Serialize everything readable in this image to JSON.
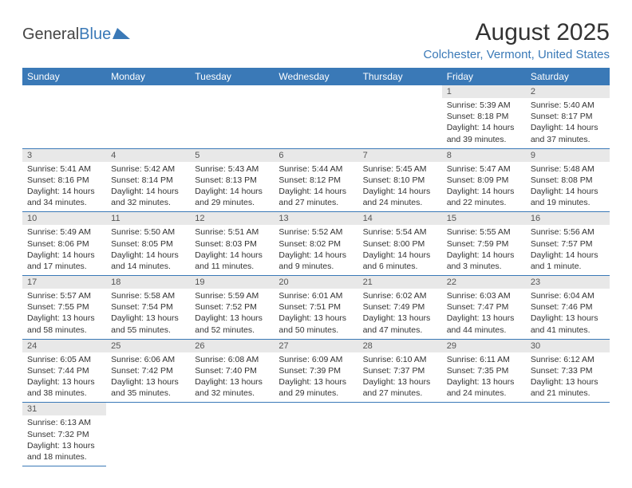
{
  "logo": {
    "part1": "General",
    "part2": "Blue"
  },
  "title": "August 2025",
  "location": "Colchester, Vermont, United States",
  "colors": {
    "brand": "#3a79b7",
    "daynum_bg": "#e8e8e8",
    "text": "#333333",
    "bg": "#ffffff"
  },
  "typography": {
    "title_fontsize": 30,
    "location_fontsize": 15,
    "header_fontsize": 12,
    "body_fontsize": 10.5
  },
  "weekdays": [
    "Sunday",
    "Monday",
    "Tuesday",
    "Wednesday",
    "Thursday",
    "Friday",
    "Saturday"
  ],
  "weeks": [
    [
      null,
      null,
      null,
      null,
      null,
      {
        "day": "1",
        "sunrise": "5:39 AM",
        "sunset": "8:18 PM",
        "dl_h": "14",
        "dl_m": "39"
      },
      {
        "day": "2",
        "sunrise": "5:40 AM",
        "sunset": "8:17 PM",
        "dl_h": "14",
        "dl_m": "37"
      }
    ],
    [
      {
        "day": "3",
        "sunrise": "5:41 AM",
        "sunset": "8:16 PM",
        "dl_h": "14",
        "dl_m": "34"
      },
      {
        "day": "4",
        "sunrise": "5:42 AM",
        "sunset": "8:14 PM",
        "dl_h": "14",
        "dl_m": "32"
      },
      {
        "day": "5",
        "sunrise": "5:43 AM",
        "sunset": "8:13 PM",
        "dl_h": "14",
        "dl_m": "29"
      },
      {
        "day": "6",
        "sunrise": "5:44 AM",
        "sunset": "8:12 PM",
        "dl_h": "14",
        "dl_m": "27"
      },
      {
        "day": "7",
        "sunrise": "5:45 AM",
        "sunset": "8:10 PM",
        "dl_h": "14",
        "dl_m": "24"
      },
      {
        "day": "8",
        "sunrise": "5:47 AM",
        "sunset": "8:09 PM",
        "dl_h": "14",
        "dl_m": "22"
      },
      {
        "day": "9",
        "sunrise": "5:48 AM",
        "sunset": "8:08 PM",
        "dl_h": "14",
        "dl_m": "19"
      }
    ],
    [
      {
        "day": "10",
        "sunrise": "5:49 AM",
        "sunset": "8:06 PM",
        "dl_h": "14",
        "dl_m": "17"
      },
      {
        "day": "11",
        "sunrise": "5:50 AM",
        "sunset": "8:05 PM",
        "dl_h": "14",
        "dl_m": "14"
      },
      {
        "day": "12",
        "sunrise": "5:51 AM",
        "sunset": "8:03 PM",
        "dl_h": "14",
        "dl_m": "11"
      },
      {
        "day": "13",
        "sunrise": "5:52 AM",
        "sunset": "8:02 PM",
        "dl_h": "14",
        "dl_m": "9"
      },
      {
        "day": "14",
        "sunrise": "5:54 AM",
        "sunset": "8:00 PM",
        "dl_h": "14",
        "dl_m": "6"
      },
      {
        "day": "15",
        "sunrise": "5:55 AM",
        "sunset": "7:59 PM",
        "dl_h": "14",
        "dl_m": "3"
      },
      {
        "day": "16",
        "sunrise": "5:56 AM",
        "sunset": "7:57 PM",
        "dl_h": "14",
        "dl_m": "1",
        "singular": true
      }
    ],
    [
      {
        "day": "17",
        "sunrise": "5:57 AM",
        "sunset": "7:55 PM",
        "dl_h": "13",
        "dl_m": "58"
      },
      {
        "day": "18",
        "sunrise": "5:58 AM",
        "sunset": "7:54 PM",
        "dl_h": "13",
        "dl_m": "55"
      },
      {
        "day": "19",
        "sunrise": "5:59 AM",
        "sunset": "7:52 PM",
        "dl_h": "13",
        "dl_m": "52"
      },
      {
        "day": "20",
        "sunrise": "6:01 AM",
        "sunset": "7:51 PM",
        "dl_h": "13",
        "dl_m": "50"
      },
      {
        "day": "21",
        "sunrise": "6:02 AM",
        "sunset": "7:49 PM",
        "dl_h": "13",
        "dl_m": "47"
      },
      {
        "day": "22",
        "sunrise": "6:03 AM",
        "sunset": "7:47 PM",
        "dl_h": "13",
        "dl_m": "44"
      },
      {
        "day": "23",
        "sunrise": "6:04 AM",
        "sunset": "7:46 PM",
        "dl_h": "13",
        "dl_m": "41"
      }
    ],
    [
      {
        "day": "24",
        "sunrise": "6:05 AM",
        "sunset": "7:44 PM",
        "dl_h": "13",
        "dl_m": "38"
      },
      {
        "day": "25",
        "sunrise": "6:06 AM",
        "sunset": "7:42 PM",
        "dl_h": "13",
        "dl_m": "35"
      },
      {
        "day": "26",
        "sunrise": "6:08 AM",
        "sunset": "7:40 PM",
        "dl_h": "13",
        "dl_m": "32"
      },
      {
        "day": "27",
        "sunrise": "6:09 AM",
        "sunset": "7:39 PM",
        "dl_h": "13",
        "dl_m": "29"
      },
      {
        "day": "28",
        "sunrise": "6:10 AM",
        "sunset": "7:37 PM",
        "dl_h": "13",
        "dl_m": "27"
      },
      {
        "day": "29",
        "sunrise": "6:11 AM",
        "sunset": "7:35 PM",
        "dl_h": "13",
        "dl_m": "24"
      },
      {
        "day": "30",
        "sunrise": "6:12 AM",
        "sunset": "7:33 PM",
        "dl_h": "13",
        "dl_m": "21"
      }
    ],
    [
      {
        "day": "31",
        "sunrise": "6:13 AM",
        "sunset": "7:32 PM",
        "dl_h": "13",
        "dl_m": "18"
      },
      null,
      null,
      null,
      null,
      null,
      null
    ]
  ],
  "labels": {
    "sunrise": "Sunrise:",
    "sunset": "Sunset:",
    "daylight": "Daylight:",
    "hours": "hours",
    "and": "and",
    "minutes": "minutes.",
    "minute": "minute."
  }
}
